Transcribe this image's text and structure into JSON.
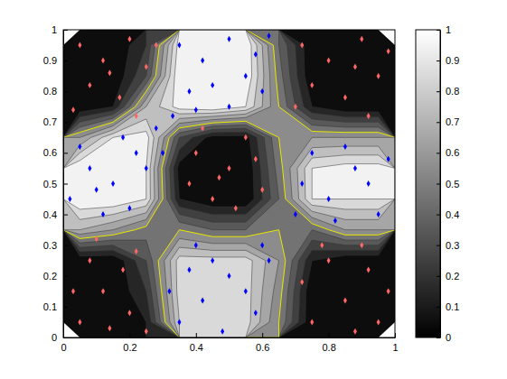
{
  "chart_data": {
    "type": "contour",
    "xlim": [
      0,
      1
    ],
    "ylim": [
      0,
      1
    ],
    "xticks": [
      0,
      0.2,
      0.4,
      0.6,
      0.8,
      1
    ],
    "yticks": [
      0,
      0.1,
      0.2,
      0.3,
      0.4,
      0.5,
      0.6,
      0.7,
      0.8,
      0.9,
      1
    ],
    "grid_x": [
      0.05,
      0.15,
      0.25,
      0.35,
      0.45,
      0.55,
      0.65,
      0.75,
      0.85,
      0.95
    ],
    "grid_y": [
      0.05,
      0.15,
      0.25,
      0.35,
      0.45,
      0.55,
      0.65,
      0.75,
      0.85,
      0.95
    ],
    "z": [
      [
        0,
        0,
        0.1,
        0.8,
        0.85,
        0.85,
        0.5,
        0,
        0,
        0
      ],
      [
        0,
        0,
        0.2,
        0.85,
        0.85,
        0.85,
        0.55,
        0,
        0,
        0
      ],
      [
        0,
        0,
        0.3,
        0.85,
        0.85,
        0.85,
        0.6,
        0.1,
        0,
        0
      ],
      [
        0.7,
        0.6,
        0.45,
        0.5,
        0.4,
        0.4,
        0.5,
        0.4,
        0.6,
        0.6
      ],
      [
        1,
        1,
        0.9,
        0.1,
        0,
        0,
        0.4,
        0.9,
        0.9,
        0.9
      ],
      [
        1,
        1,
        0.9,
        0.05,
        0,
        0,
        0.45,
        0.9,
        0.95,
        0.95
      ],
      [
        0.6,
        0.9,
        0.95,
        0.3,
        0.05,
        0.05,
        0.5,
        0.6,
        0.6,
        0.6
      ],
      [
        0,
        0.1,
        0.7,
        0.95,
        1,
        0.9,
        0.5,
        0.1,
        0,
        0
      ],
      [
        0,
        0,
        0.3,
        1,
        1,
        1,
        0.45,
        0,
        0,
        0
      ],
      [
        0,
        0,
        0.2,
        0.95,
        1,
        1,
        0.4,
        0,
        0,
        0
      ]
    ],
    "levels": [
      0,
      0.1,
      0.2,
      0.3,
      0.4,
      0.5,
      0.6,
      0.7,
      0.8,
      0.9
    ],
    "boundary_level": 0.5,
    "colorbar": {
      "range": [
        0,
        1
      ],
      "ticks": [
        0,
        0.1,
        0.2,
        0.3,
        0.4,
        0.5,
        0.6,
        0.7,
        0.8,
        0.9,
        1
      ]
    },
    "series": [
      {
        "color": "#ff6666",
        "marker": "diamond",
        "x": [
          0.05,
          0.12,
          0.2,
          0.08,
          0.17,
          0.25,
          0.03,
          0.22,
          0.14,
          0.28,
          0.72,
          0.8,
          0.9,
          0.95,
          0.85,
          0.75,
          0.92,
          0.7,
          0.88,
          0.98,
          0.4,
          0.5,
          0.45,
          0.55,
          0.38,
          0.6,
          0.52,
          0.42,
          0.58,
          0.47,
          0.05,
          0.12,
          0.2,
          0.08,
          0.18,
          0.03,
          0.25,
          0.14,
          0.22,
          0.1,
          0.75,
          0.85,
          0.92,
          0.8,
          0.95,
          0.72,
          0.88,
          0.98,
          0.78,
          0.9
        ],
        "values": [
          0.95,
          0.9,
          0.97,
          0.82,
          0.78,
          0.88,
          0.74,
          0.72,
          0.86,
          0.95,
          0.95,
          0.9,
          0.97,
          0.85,
          0.78,
          0.82,
          0.72,
          0.75,
          0.88,
          0.93,
          0.6,
          0.55,
          0.45,
          0.65,
          0.5,
          0.48,
          0.42,
          0.68,
          0.58,
          0.52,
          0.05,
          0.15,
          0.08,
          0.25,
          0.22,
          0.15,
          0.02,
          0.03,
          0.28,
          0.32,
          0.05,
          0.12,
          0.22,
          0.25,
          0.05,
          0.18,
          0.02,
          0.15,
          0.3,
          0.3
        ]
      },
      {
        "color": "#0000ff",
        "marker": "diamond",
        "x": [
          0.35,
          0.42,
          0.5,
          0.58,
          0.45,
          0.55,
          0.38,
          0.62,
          0.5,
          0.33,
          0.6,
          0.4,
          0.02,
          0.08,
          0.15,
          0.22,
          0.05,
          0.12,
          0.25,
          0.18,
          0.28,
          0.1,
          0.2,
          0.3,
          0.72,
          0.8,
          0.88,
          0.95,
          0.75,
          0.85,
          0.92,
          0.7,
          0.98,
          0.82,
          0.35,
          0.42,
          0.5,
          0.58,
          0.45,
          0.55,
          0.38,
          0.62,
          0.48,
          0.6,
          0.4,
          0.32
        ],
        "values": [
          0.95,
          0.9,
          0.97,
          0.92,
          0.82,
          0.85,
          0.8,
          0.98,
          0.75,
          0.72,
          0.8,
          0.74,
          0.45,
          0.55,
          0.5,
          0.6,
          0.62,
          0.4,
          0.55,
          0.65,
          0.68,
          0.48,
          0.42,
          0.6,
          0.5,
          0.45,
          0.55,
          0.4,
          0.6,
          0.62,
          0.5,
          0.4,
          0.58,
          0.38,
          0.05,
          0.12,
          0.2,
          0.08,
          0.25,
          0.15,
          0.22,
          0.25,
          0.02,
          0.3,
          0.3,
          0.15
        ]
      }
    ]
  }
}
